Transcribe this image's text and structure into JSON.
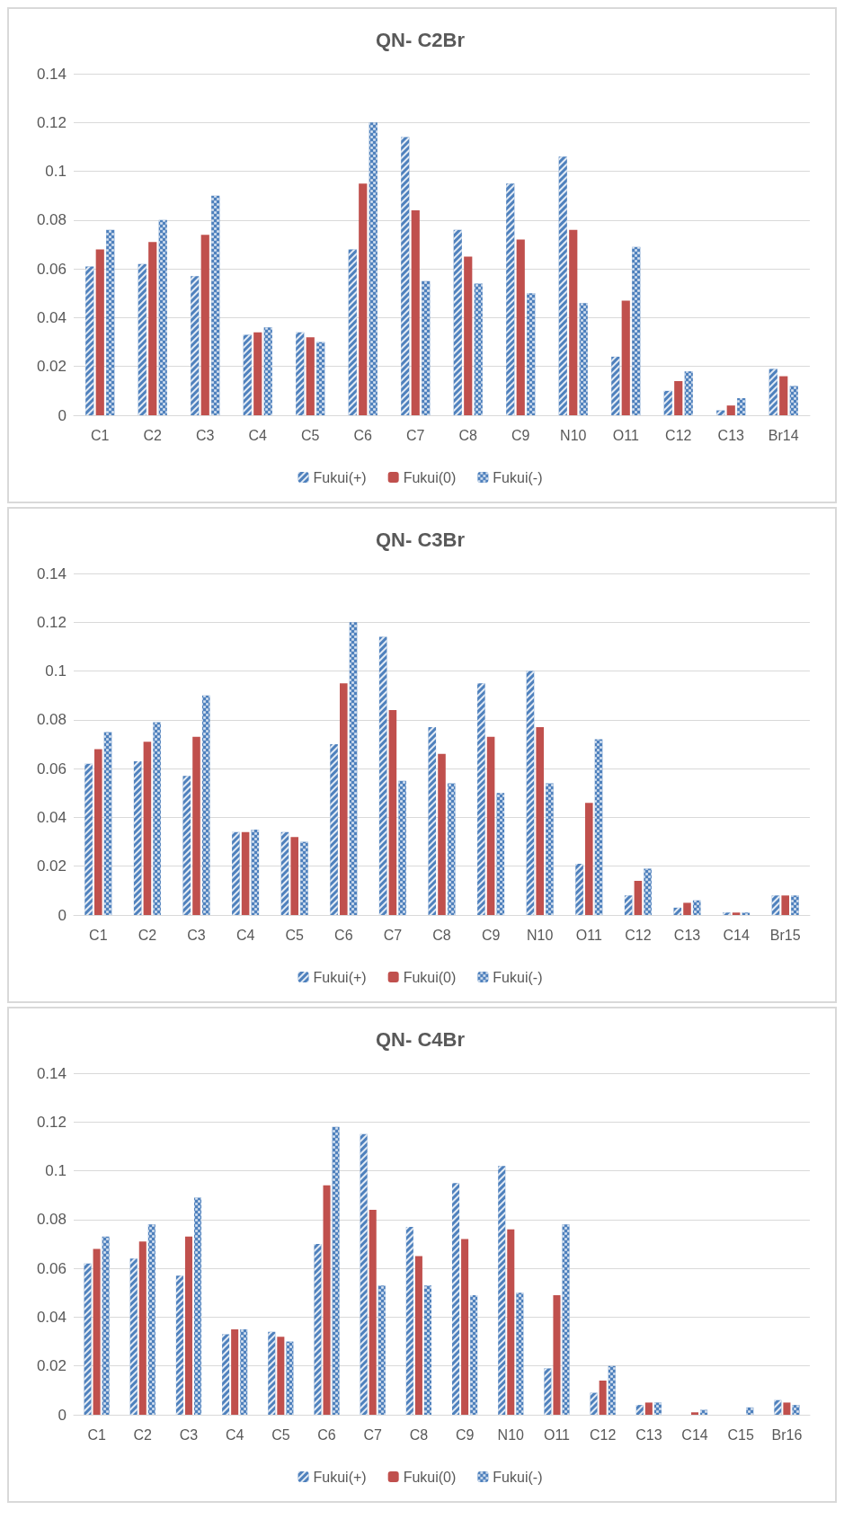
{
  "chart_data": [
    {
      "type": "bar",
      "title": "QN- C2Br",
      "categories": [
        "C1",
        "C2",
        "C3",
        "C4",
        "C5",
        "C6",
        "C7",
        "C8",
        "C9",
        "N10",
        "O11",
        "C12",
        "C13",
        "Br14"
      ],
      "series": [
        {
          "name": "Fukui(+)",
          "color": "#4f81bd",
          "values": [
            0.061,
            0.062,
            0.057,
            0.033,
            0.034,
            0.068,
            0.114,
            0.076,
            0.095,
            0.106,
            0.024,
            0.01,
            0.002,
            0.019
          ]
        },
        {
          "name": "Fukui(0)",
          "color": "#c0504d",
          "values": [
            0.068,
            0.071,
            0.074,
            0.034,
            0.032,
            0.095,
            0.084,
            0.065,
            0.072,
            0.076,
            0.047,
            0.014,
            0.004,
            0.016
          ]
        },
        {
          "name": "Fukui(-)",
          "color": "#4f81bd",
          "values": [
            0.076,
            0.08,
            0.09,
            0.036,
            0.03,
            0.12,
            0.055,
            0.054,
            0.05,
            0.046,
            0.069,
            0.018,
            0.007,
            0.012
          ]
        }
      ],
      "ylim": [
        0,
        0.14
      ],
      "yticks": [
        0,
        0.02,
        0.04,
        0.06,
        0.08,
        0.1,
        0.12,
        0.14
      ],
      "grid": "y",
      "legend": "bottom"
    },
    {
      "type": "bar",
      "title": "QN- C3Br",
      "categories": [
        "C1",
        "C2",
        "C3",
        "C4",
        "C5",
        "C6",
        "C7",
        "C8",
        "C9",
        "N10",
        "O11",
        "C12",
        "C13",
        "C14",
        "Br15"
      ],
      "series": [
        {
          "name": "Fukui(+)",
          "color": "#4f81bd",
          "values": [
            0.062,
            0.063,
            0.057,
            0.034,
            0.034,
            0.07,
            0.114,
            0.077,
            0.095,
            0.1,
            0.021,
            0.008,
            0.003,
            0.001,
            0.008
          ]
        },
        {
          "name": "Fukui(0)",
          "color": "#c0504d",
          "values": [
            0.068,
            0.071,
            0.073,
            0.034,
            0.032,
            0.095,
            0.084,
            0.066,
            0.073,
            0.077,
            0.046,
            0.014,
            0.005,
            0.001,
            0.008
          ]
        },
        {
          "name": "Fukui(-)",
          "color": "#4f81bd",
          "values": [
            0.075,
            0.079,
            0.09,
            0.035,
            0.03,
            0.12,
            0.055,
            0.054,
            0.05,
            0.054,
            0.072,
            0.019,
            0.006,
            0.001,
            0.008
          ]
        }
      ],
      "ylim": [
        0,
        0.14
      ],
      "yticks": [
        0,
        0.02,
        0.04,
        0.06,
        0.08,
        0.1,
        0.12,
        0.14
      ],
      "grid": "y",
      "legend": "bottom"
    },
    {
      "type": "bar",
      "title": "QN- C4Br",
      "categories": [
        "C1",
        "C2",
        "C3",
        "C4",
        "C5",
        "C6",
        "C7",
        "C8",
        "C9",
        "N10",
        "O11",
        "C12",
        "C13",
        "C14",
        "C15",
        "Br16"
      ],
      "series": [
        {
          "name": "Fukui(+)",
          "color": "#4f81bd",
          "values": [
            0.062,
            0.064,
            0.057,
            0.033,
            0.034,
            0.07,
            0.115,
            0.077,
            0.095,
            0.102,
            0.019,
            0.009,
            0.004,
            0.0,
            0.0,
            0.006
          ]
        },
        {
          "name": "Fukui(0)",
          "color": "#c0504d",
          "values": [
            0.068,
            0.071,
            0.073,
            0.035,
            0.032,
            0.094,
            0.084,
            0.065,
            0.072,
            0.076,
            0.049,
            0.014,
            0.005,
            0.001,
            0.0,
            0.005
          ]
        },
        {
          "name": "Fukui(-)",
          "color": "#4f81bd",
          "values": [
            0.073,
            0.078,
            0.089,
            0.035,
            0.03,
            0.118,
            0.053,
            0.053,
            0.049,
            0.05,
            0.078,
            0.02,
            0.005,
            0.002,
            0.003,
            0.004
          ]
        }
      ],
      "ylim": [
        0,
        0.14
      ],
      "yticks": [
        0,
        0.02,
        0.04,
        0.06,
        0.08,
        0.1,
        0.12,
        0.14
      ],
      "grid": "y",
      "legend": "bottom"
    }
  ]
}
